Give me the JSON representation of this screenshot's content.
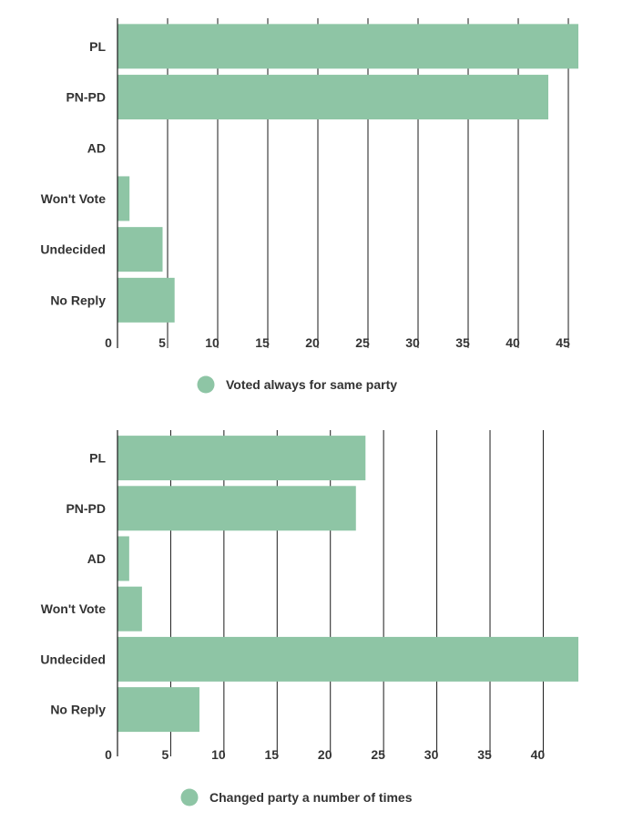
{
  "chart_data": [
    {
      "type": "bar",
      "orientation": "horizontal",
      "categories": [
        "PL",
        "PN-PD",
        "AD",
        "Won't Vote",
        "Undecided",
        "No Reply"
      ],
      "series": [
        {
          "name": "Voted always for same party",
          "values": [
            46,
            43,
            0,
            1.2,
            4.5,
            5.7
          ]
        }
      ],
      "xlim": [
        0,
        46
      ],
      "xticks": [
        0,
        5,
        10,
        15,
        20,
        25,
        30,
        35,
        40,
        45
      ],
      "xtick_labels": [
        "0",
        "5",
        "10",
        "15",
        "20",
        "25",
        "30",
        "35",
        "40",
        "45"
      ],
      "grid": true,
      "legend_position": "bottom",
      "color": "#8ec5a5"
    },
    {
      "type": "bar",
      "orientation": "horizontal",
      "categories": [
        "PL",
        "PN-PD",
        "AD",
        "Won't Vote",
        "Undecided",
        "No Reply"
      ],
      "series": [
        {
          "name": "Changed party a number of times",
          "values": [
            23.3,
            22.4,
            1.1,
            2.3,
            43.3,
            7.7
          ]
        }
      ],
      "xlim": [
        0,
        43.3
      ],
      "xticks": [
        0,
        5,
        10,
        15,
        20,
        25,
        30,
        35,
        40
      ],
      "xtick_labels": [
        "0",
        "5",
        "10",
        "15",
        "20",
        "25",
        "30",
        "35",
        "40"
      ],
      "grid": true,
      "legend_position": "bottom",
      "color": "#8ec5a5"
    }
  ]
}
